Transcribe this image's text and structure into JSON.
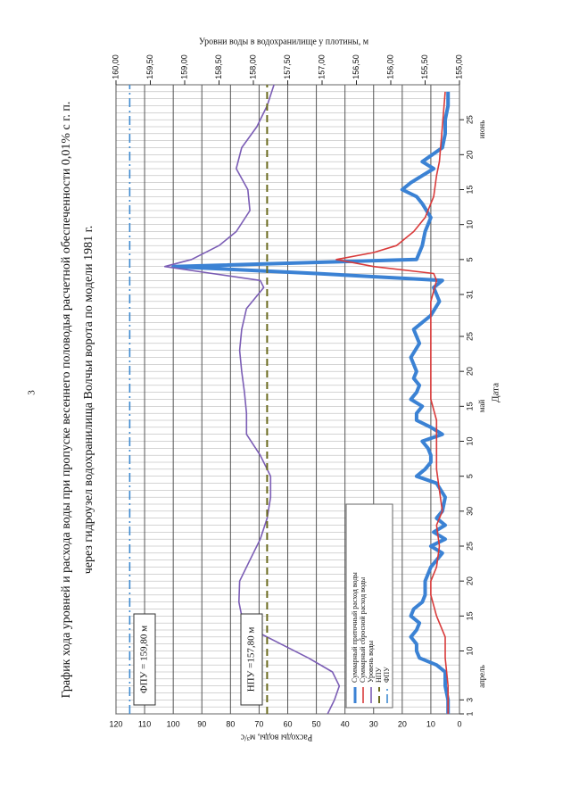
{
  "page_number": "3",
  "chart_data": {
    "type": "line",
    "title": "График хода уровней и расхода воды при пропуске весеннего половодья расчетной обеспеченности 0,01% с г. п.",
    "subtitle": "через гидроузел водохранилища Волчьи ворота по модели 1981 г.",
    "xlabel": "Дата",
    "ylabel": "Расходы воды, м³/с",
    "y2label": "Уровни воды в водохранилище у плотины, м",
    "month_labels": [
      "апрель",
      "май",
      "июнь"
    ],
    "annotations": [
      "ФПУ = 159,80 м",
      "НПУ =157,80 м"
    ],
    "xlim": [
      1,
      91
    ],
    "xticks": [
      1,
      3,
      10,
      15,
      20,
      25,
      30,
      {
        "value": 35,
        "label": "5"
      },
      {
        "value": 40,
        "label": "10"
      },
      {
        "value": 45,
        "label": "15"
      },
      {
        "value": 50,
        "label": "20"
      },
      {
        "value": 55,
        "label": "25"
      },
      {
        "value": 61,
        "label": "31"
      },
      {
        "value": 66,
        "label": "5"
      },
      {
        "value": 71,
        "label": "10"
      },
      {
        "value": 76,
        "label": "15"
      },
      {
        "value": 81,
        "label": "20"
      },
      {
        "value": 86,
        "label": "25"
      }
    ],
    "ylim": [
      0,
      120
    ],
    "yticks": [
      0,
      10,
      20,
      30,
      40,
      50,
      60,
      70,
      80,
      90,
      100,
      110,
      120
    ],
    "y2lim": [
      155,
      160
    ],
    "y2ticks": [
      {
        "value": 155,
        "label": "155,00"
      },
      {
        "value": 155.5,
        "label": "155,50"
      },
      {
        "value": 156,
        "label": "156,00"
      },
      {
        "value": 156.5,
        "label": "156,50"
      },
      {
        "value": 157,
        "label": "157,00"
      },
      {
        "value": 157.5,
        "label": "157,50"
      },
      {
        "value": 158,
        "label": "158,00"
      },
      {
        "value": 158.5,
        "label": "158,50"
      },
      {
        "value": 159,
        "label": "159,00"
      },
      {
        "value": 159.5,
        "label": "159,50"
      },
      {
        "value": 160,
        "label": "160,00"
      }
    ],
    "grid": true,
    "minor_grid": true,
    "legend": "lower left",
    "series": [
      {
        "name": "Суммарный приточный расход воды",
        "color": "#3b82d4",
        "width": 4,
        "x": [
          1,
          3,
          5,
          7,
          8,
          9,
          10,
          11,
          12,
          13,
          14,
          15,
          16,
          17,
          18,
          20,
          22,
          23,
          24,
          25,
          26,
          27,
          28,
          29,
          30,
          32,
          34,
          35,
          36,
          37,
          38,
          39,
          40,
          41,
          42,
          43,
          44,
          45,
          46,
          47,
          48,
          49,
          50,
          52,
          54,
          56,
          58,
          60,
          62,
          63,
          64,
          65,
          66,
          67,
          68,
          70,
          72,
          74,
          75,
          76,
          77,
          78,
          79,
          80,
          82,
          84,
          86,
          88,
          90
        ],
        "values": [
          4,
          4,
          5,
          5,
          8,
          14,
          15,
          15,
          17,
          15,
          14,
          17,
          16,
          13,
          12,
          12,
          10,
          8,
          6,
          10,
          5,
          9,
          5,
          8,
          6,
          5,
          8,
          15,
          12,
          10,
          10,
          11,
          13,
          6,
          10,
          15,
          15,
          13,
          17,
          15,
          14,
          16,
          15,
          17,
          14,
          16,
          10,
          7,
          9,
          6,
          50,
          100,
          15,
          14,
          13,
          12,
          10,
          13,
          15,
          20,
          17,
          13,
          9,
          13,
          6,
          5,
          5,
          4,
          4
        ]
      },
      {
        "name": "Суммарный сбросной расход воды",
        "color": "#d93a3a",
        "width": 1.6,
        "x": [
          1,
          5,
          9,
          12,
          15,
          18,
          20,
          22,
          25,
          28,
          30,
          33,
          36,
          40,
          43,
          46,
          50,
          55,
          60,
          63,
          64,
          65,
          66,
          67,
          68,
          70,
          72,
          75,
          78,
          80,
          85,
          90
        ],
        "values": [
          4,
          4,
          5,
          5,
          8,
          10,
          10,
          8,
          7,
          8,
          6,
          7,
          8,
          8,
          8,
          10,
          10,
          10,
          10,
          8,
          9,
          30,
          43,
          30,
          22,
          16,
          12,
          9,
          8,
          7,
          6,
          5
        ]
      },
      {
        "name": "Уровень воды",
        "color": "#7b5db5",
        "width": 1.6,
        "axis": "y2",
        "x": [
          1,
          3,
          5,
          7,
          9,
          11,
          13,
          15,
          17,
          20,
          23,
          26,
          29,
          32,
          35,
          38,
          41,
          44,
          47,
          50,
          53,
          56,
          59,
          62,
          63,
          64,
          65,
          66,
          68,
          70,
          73,
          76,
          79,
          82,
          85,
          88,
          91
        ],
        "values": [
          156.92,
          156.82,
          156.75,
          156.85,
          157.2,
          157.6,
          158,
          158.17,
          158.21,
          158.2,
          158.05,
          157.9,
          157.8,
          157.75,
          157.75,
          157.9,
          158.1,
          158.1,
          158.13,
          158.17,
          158.2,
          158.17,
          158.1,
          157.85,
          157.9,
          158.6,
          159.29,
          158.9,
          158.5,
          158.25,
          158.05,
          158.08,
          158.25,
          158.17,
          157.95,
          157.8,
          157.7
        ]
      },
      {
        "name": "НПУ",
        "color": "#6b6b1e",
        "width": 2,
        "dash": "8 5",
        "axis": "y2",
        "x": [
          1,
          91
        ],
        "values": [
          157.8,
          157.8
        ]
      },
      {
        "name": "ФПУ",
        "color": "#3f8ad0",
        "width": 1.6,
        "dash": "10 4 2 4",
        "axis": "y2",
        "x": [
          1,
          91
        ],
        "values": [
          159.8,
          159.8
        ]
      }
    ]
  }
}
